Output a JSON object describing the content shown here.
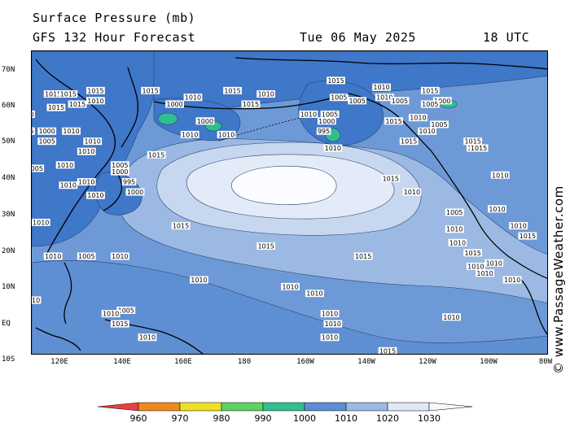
{
  "header": {
    "title": "Surface Pressure (mb)",
    "subtitle": "GFS 132 Hour Forecast",
    "valid_date": "Tue 06 May 2025",
    "valid_time": "18 UTC"
  },
  "watermark": "© www.PassageWeather.com",
  "axes": {
    "lat_labels": [
      "70N",
      "60N",
      "50N",
      "40N",
      "30N",
      "20N",
      "10N",
      "EQ",
      "10S"
    ],
    "lon_labels": [
      "120E",
      "140E",
      "160E",
      "180",
      "160W",
      "140W",
      "120W",
      "100W",
      "80W"
    ]
  },
  "isobar_labels": [
    {
      "text": "1015",
      "lon": 117,
      "lat": 62
    },
    {
      "text": "1015",
      "lon": 122,
      "lat": 62
    },
    {
      "text": "1015",
      "lon": 131,
      "lat": 63
    },
    {
      "text": "1015",
      "lon": 149,
      "lat": 63
    },
    {
      "text": "1015",
      "lon": 118,
      "lat": 58
    },
    {
      "text": "1010",
      "lon": 131,
      "lat": 60
    },
    {
      "text": "1015",
      "lon": 125,
      "lat": 59
    },
    {
      "text": "1000",
      "lon": 157,
      "lat": 59
    },
    {
      "text": "1010",
      "lon": 163,
      "lat": 61
    },
    {
      "text": "1000",
      "lon": 167,
      "lat": 54
    },
    {
      "text": "1010",
      "lon": 174,
      "lat": 50
    },
    {
      "text": "1010",
      "lon": 162,
      "lat": 50
    },
    {
      "text": "1015",
      "lon": 182,
      "lat": 59
    },
    {
      "text": "1015",
      "lon": 176,
      "lat": 63
    },
    {
      "text": "1010",
      "lon": 187,
      "lat": 62
    },
    {
      "text": "1015",
      "lon": 210,
      "lat": 66
    },
    {
      "text": "1005",
      "lon": 211,
      "lat": 61
    },
    {
      "text": "1005",
      "lon": 217,
      "lat": 60
    },
    {
      "text": "1010",
      "lon": 201,
      "lat": 56
    },
    {
      "text": "1005",
      "lon": 208,
      "lat": 56
    },
    {
      "text": "1000",
      "lon": 207,
      "lat": 54
    },
    {
      "text": "995",
      "lon": 206,
      "lat": 51
    },
    {
      "text": "1010",
      "lon": 209,
      "lat": 46
    },
    {
      "text": "1010",
      "lon": 225,
      "lat": 64
    },
    {
      "text": "1010",
      "lon": 226,
      "lat": 61
    },
    {
      "text": "1005",
      "lon": 231,
      "lat": 60
    },
    {
      "text": "1015",
      "lon": 241,
      "lat": 63
    },
    {
      "text": "1000",
      "lon": 245,
      "lat": 60
    },
    {
      "text": "1005",
      "lon": 241,
      "lat": 59
    },
    {
      "text": "1015",
      "lon": 229,
      "lat": 54
    },
    {
      "text": "1010",
      "lon": 237,
      "lat": 55
    },
    {
      "text": "1005",
      "lon": 244,
      "lat": 53
    },
    {
      "text": "1015",
      "lon": 234,
      "lat": 48
    },
    {
      "text": "1010",
      "lon": 240,
      "lat": 51
    },
    {
      "text": "1015",
      "lon": 255,
      "lat": 48
    },
    {
      "text": "1015",
      "lon": 256,
      "lat": 46
    },
    {
      "text": "1010",
      "lon": 108,
      "lat": 56
    },
    {
      "text": "1010",
      "lon": 123,
      "lat": 51
    },
    {
      "text": "1000",
      "lon": 115,
      "lat": 51
    },
    {
      "text": "1005",
      "lon": 108,
      "lat": 51
    },
    {
      "text": "1005",
      "lon": 115,
      "lat": 48
    },
    {
      "text": "1010",
      "lon": 130,
      "lat": 48
    },
    {
      "text": "1010",
      "lon": 128,
      "lat": 45
    },
    {
      "text": "1015",
      "lon": 151,
      "lat": 44
    },
    {
      "text": "1005",
      "lon": 111,
      "lat": 40
    },
    {
      "text": "1010",
      "lon": 121,
      "lat": 41
    },
    {
      "text": "1005",
      "lon": 139,
      "lat": 41
    },
    {
      "text": "1000",
      "lon": 139,
      "lat": 39
    },
    {
      "text": "995",
      "lon": 142,
      "lat": 36
    },
    {
      "text": "1000",
      "lon": 144,
      "lat": 33
    },
    {
      "text": "1010",
      "lon": 122,
      "lat": 35
    },
    {
      "text": "1010",
      "lon": 128,
      "lat": 36
    },
    {
      "text": "1010",
      "lon": 131,
      "lat": 32
    },
    {
      "text": "1010",
      "lon": 113,
      "lat": 24
    },
    {
      "text": "1015",
      "lon": 159,
      "lat": 23
    },
    {
      "text": "1015",
      "lon": 187,
      "lat": 17
    },
    {
      "text": "1015",
      "lon": 219,
      "lat": 14
    },
    {
      "text": "1015",
      "lon": 255,
      "lat": 15
    },
    {
      "text": "1010",
      "lon": 117,
      "lat": 14
    },
    {
      "text": "1005",
      "lon": 128,
      "lat": 14
    },
    {
      "text": "1010",
      "lon": 139,
      "lat": 14
    },
    {
      "text": "1010",
      "lon": 165,
      "lat": 7
    },
    {
      "text": "1010",
      "lon": 195,
      "lat": 5
    },
    {
      "text": "1010",
      "lon": 203,
      "lat": 3
    },
    {
      "text": "1010",
      "lon": 110,
      "lat": 1
    },
    {
      "text": "1005",
      "lon": 141,
      "lat": -2
    },
    {
      "text": "1010",
      "lon": 136,
      "lat": -3
    },
    {
      "text": "1015",
      "lon": 139,
      "lat": -6
    },
    {
      "text": "1010",
      "lon": 148,
      "lat": -10
    },
    {
      "text": "1010",
      "lon": 208,
      "lat": -3
    },
    {
      "text": "1010",
      "lon": 209,
      "lat": -6
    },
    {
      "text": "1010",
      "lon": 208,
      "lat": -10
    },
    {
      "text": "1015",
      "lon": 227,
      "lat": -14
    },
    {
      "text": "1010",
      "lon": 248,
      "lat": -4
    },
    {
      "text": "1015",
      "lon": 257,
      "lat": 46
    },
    {
      "text": "1010",
      "lon": 264,
      "lat": 38
    },
    {
      "text": "1010",
      "lon": 263,
      "lat": 28
    },
    {
      "text": "1010",
      "lon": 270,
      "lat": 23
    },
    {
      "text": "1015",
      "lon": 273,
      "lat": 20
    },
    {
      "text": "1015",
      "lon": 228,
      "lat": 37
    },
    {
      "text": "1010",
      "lon": 235,
      "lat": 33
    },
    {
      "text": "1005",
      "lon": 249,
      "lat": 27
    },
    {
      "text": "1010",
      "lon": 249,
      "lat": 22
    },
    {
      "text": "1010",
      "lon": 250,
      "lat": 18
    },
    {
      "text": "1010",
      "lon": 256,
      "lat": 11
    },
    {
      "text": "1010",
      "lon": 259,
      "lat": 9
    },
    {
      "text": "1010",
      "lon": 262,
      "lat": 12
    },
    {
      "text": "1010",
      "lon": 268,
      "lat": 7
    }
  ],
  "colorbar": {
    "ticks": [
      "960",
      "970",
      "980",
      "990",
      "1000",
      "1010",
      "1020",
      "1030"
    ],
    "colors": [
      "#e84040",
      "#f08820",
      "#f0e020",
      "#60d060",
      "#30c090",
      "#5b8ed6",
      "#9cb8e4",
      "#dfe8f7"
    ]
  },
  "map_colors": {
    "land_low": "#3f77c9",
    "ocean_base": "#6d9ad7",
    "band_1015": "#9cb9e3",
    "band_1020": "#c7d7ef",
    "band_1025": "#e3ebf8",
    "band_1030": "#fbfcff",
    "deep_low": "#2fbf8f"
  }
}
